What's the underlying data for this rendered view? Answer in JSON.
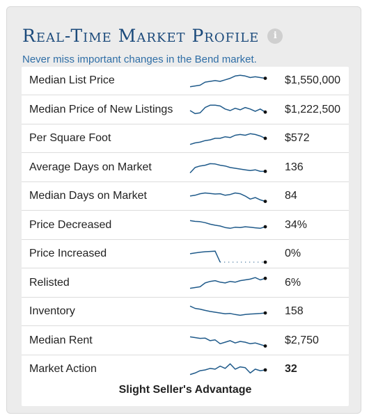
{
  "header": {
    "title": "Real-Time Market Profile",
    "info_icon": "info-icon",
    "subtitle": "Never miss important changes in the Bend market."
  },
  "colors": {
    "title": "#1b4a7b",
    "subtitle": "#2f6ea6",
    "sparkline": "#1f5a8a",
    "panel_bg": "#ececec"
  },
  "rows": [
    {
      "label": "Median List Price",
      "value": "$1,550,000",
      "bold": false,
      "trend": [
        0.15,
        0.2,
        0.25,
        0.45,
        0.5,
        0.55,
        0.5,
        0.6,
        0.7,
        0.85,
        0.9,
        0.85,
        0.75,
        0.8,
        0.75,
        0.7
      ]
    },
    {
      "label": "Median Price of New Listings",
      "value": "$1,222,500",
      "bold": false,
      "trend": [
        0.5,
        0.3,
        0.35,
        0.7,
        0.85,
        0.85,
        0.8,
        0.6,
        0.5,
        0.65,
        0.55,
        0.7,
        0.6,
        0.45,
        0.6,
        0.4
      ]
    },
    {
      "label": "Per Square Foot",
      "value": "$572",
      "bold": false,
      "trend": [
        0.15,
        0.25,
        0.3,
        0.4,
        0.45,
        0.55,
        0.55,
        0.65,
        0.6,
        0.75,
        0.8,
        0.75,
        0.85,
        0.8,
        0.7,
        0.55
      ]
    },
    {
      "label": "Average Days on Market",
      "value": "136",
      "bold": false,
      "trend": [
        0.2,
        0.55,
        0.65,
        0.7,
        0.8,
        0.78,
        0.7,
        0.65,
        0.55,
        0.5,
        0.45,
        0.4,
        0.35,
        0.4,
        0.3,
        0.3
      ]
    },
    {
      "label": "Median Days on Market",
      "value": "84",
      "bold": false,
      "trend": [
        0.55,
        0.6,
        0.7,
        0.75,
        0.72,
        0.68,
        0.7,
        0.6,
        0.65,
        0.75,
        0.7,
        0.55,
        0.35,
        0.45,
        0.3,
        0.2
      ]
    },
    {
      "label": "Price Decreased",
      "value": "34%",
      "bold": false,
      "trend": [
        0.85,
        0.8,
        0.78,
        0.72,
        0.62,
        0.55,
        0.5,
        0.4,
        0.35,
        0.42,
        0.4,
        0.45,
        0.42,
        0.38,
        0.35,
        0.45
      ]
    },
    {
      "label": "Price Increased",
      "value": "0%",
      "bold": false,
      "trend": [
        0.55,
        0.6,
        0.65,
        0.68,
        0.7,
        0.72,
        0.0,
        0.0,
        0.0,
        0.0,
        0.0,
        0.0,
        0.0,
        0.0,
        0.0,
        0.0
      ]
    },
    {
      "label": "Relisted",
      "value": "6%",
      "bold": false,
      "trend": [
        0.2,
        0.25,
        0.3,
        0.55,
        0.65,
        0.7,
        0.6,
        0.55,
        0.65,
        0.6,
        0.7,
        0.75,
        0.8,
        0.9,
        0.75,
        0.85
      ]
    },
    {
      "label": "Inventory",
      "value": "158",
      "bold": false,
      "trend": [
        0.9,
        0.75,
        0.7,
        0.62,
        0.55,
        0.5,
        0.45,
        0.4,
        0.42,
        0.35,
        0.3,
        0.35,
        0.38,
        0.4,
        0.42,
        0.45
      ]
    },
    {
      "label": "Median Rent",
      "value": "$2,750",
      "bold": false,
      "trend": [
        0.8,
        0.75,
        0.7,
        0.72,
        0.55,
        0.6,
        0.35,
        0.45,
        0.55,
        0.4,
        0.5,
        0.45,
        0.35,
        0.4,
        0.3,
        0.2
      ]
    },
    {
      "label": "Market Action",
      "value": "32",
      "bold": true,
      "trend": [
        0.2,
        0.3,
        0.45,
        0.5,
        0.6,
        0.55,
        0.75,
        0.6,
        0.9,
        0.55,
        0.7,
        0.65,
        0.3,
        0.55,
        0.45,
        0.5
      ]
    }
  ],
  "footer": {
    "market_status": "Slight Seller's Advantage"
  }
}
